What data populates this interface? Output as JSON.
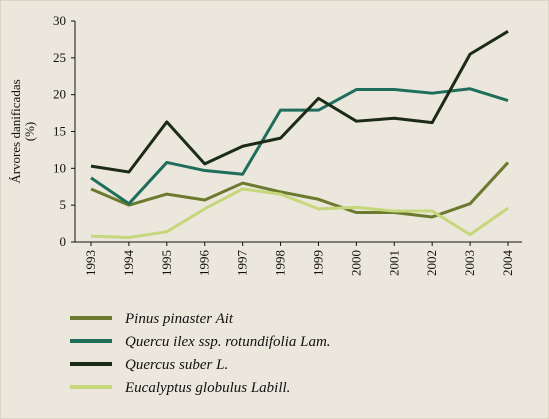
{
  "chart_data": {
    "type": "line",
    "ylabel": [
      "Árvores danificadas",
      "(%)"
    ],
    "categories": [
      "1993",
      "1994",
      "1995",
      "1996",
      "1997",
      "1998",
      "1999",
      "2000",
      "2001",
      "2002",
      "2003",
      "2004"
    ],
    "ylim": [
      0,
      30
    ],
    "yticks": [
      0,
      5,
      10,
      15,
      20,
      25,
      30
    ],
    "series": [
      {
        "name": "Pinus pinaster Ait",
        "color": "#6b7a2e",
        "values": [
          7.2,
          5.0,
          6.5,
          5.7,
          8.0,
          6.8,
          5.8,
          4.0,
          4.0,
          3.4,
          5.2,
          10.8
        ]
      },
      {
        "name": "Quercu ilex ssp. rotundifolia Lam.",
        "color": "#1f6e5c",
        "values": [
          8.7,
          5.2,
          10.8,
          9.7,
          9.2,
          17.9,
          17.9,
          20.7,
          20.7,
          20.2,
          20.8,
          19.2
        ]
      },
      {
        "name": "Quercus suber L.",
        "color": "#1c2b18",
        "values": [
          10.3,
          9.5,
          16.3,
          10.6,
          13.0,
          14.1,
          19.5,
          16.4,
          16.8,
          16.2,
          25.5,
          28.6
        ]
      },
      {
        "name": "Eucalyptus globulus Labill.",
        "color": "#c5d77a",
        "values": [
          0.8,
          0.6,
          1.4,
          4.5,
          7.2,
          6.5,
          4.5,
          4.7,
          4.2,
          4.2,
          1.0,
          4.6
        ]
      }
    ]
  }
}
